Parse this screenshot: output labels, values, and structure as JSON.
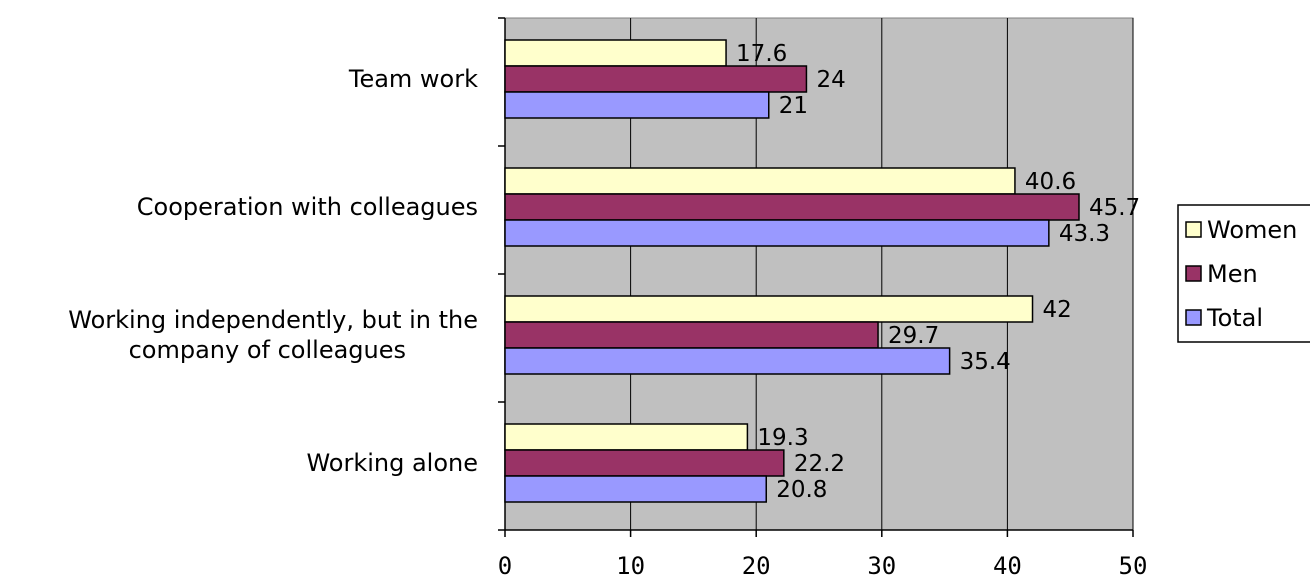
{
  "chart_data": {
    "type": "bar",
    "orientation": "horizontal",
    "title": "",
    "xlabel": "",
    "ylabel": "",
    "xlim": [
      0,
      50
    ],
    "x_ticks": [
      0,
      10,
      20,
      30,
      40,
      50
    ],
    "grid": true,
    "legend_position": "right",
    "categories": [
      [
        "Team work"
      ],
      [
        "Cooperation with colleagues"
      ],
      [
        "Working independently, but in the",
        "company of colleagues"
      ],
      [
        "Working alone"
      ]
    ],
    "series": [
      {
        "name": "Women",
        "color": "#ffffcc",
        "values": [
          17.6,
          40.6,
          42,
          19.3
        ]
      },
      {
        "name": "Men",
        "color": "#993366",
        "values": [
          24,
          45.7,
          29.7,
          22.2
        ]
      },
      {
        "name": "Total",
        "color": "#9999ff",
        "values": [
          21,
          43.3,
          35.4,
          20.8
        ]
      }
    ],
    "plot_background": "#c0c0c0"
  }
}
